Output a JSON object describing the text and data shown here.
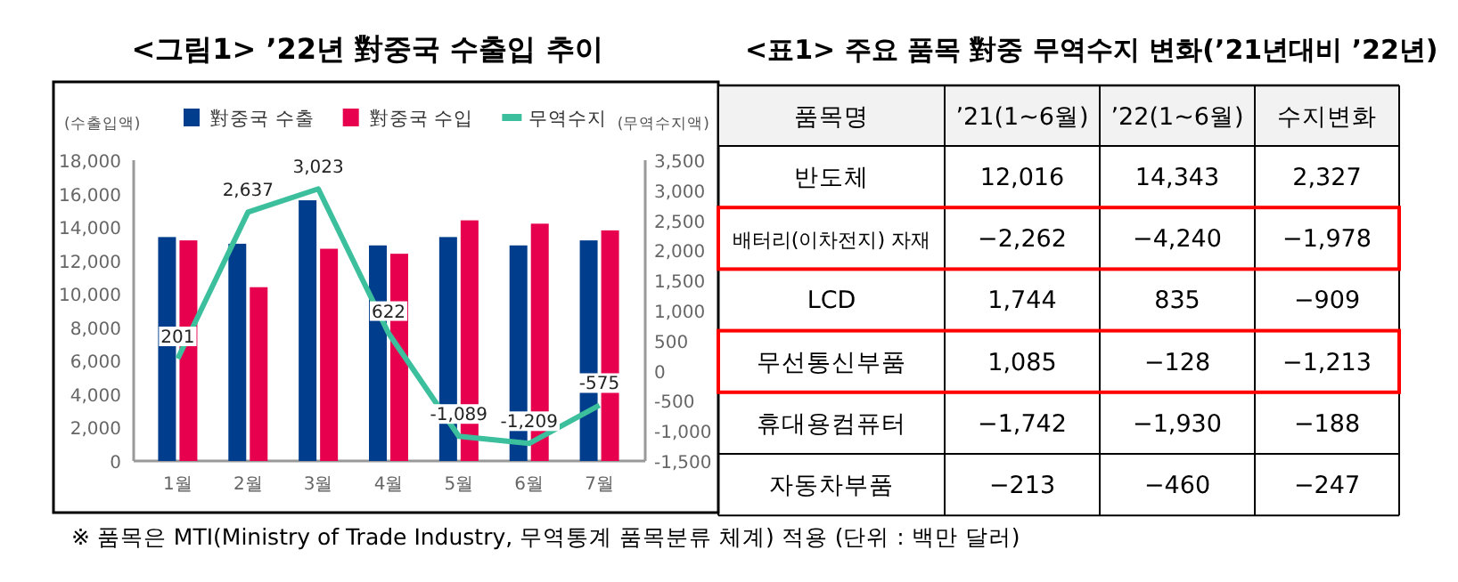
{
  "chart_data": [
    {
      "type": "bar",
      "title": "<그림1> ’22년 對중국 수출입 추이",
      "ylabel": "(수출입액)",
      "y2label": "(무역수지액)",
      "categories": [
        "1월",
        "2월",
        "3월",
        "4월",
        "5월",
        "6월",
        "7월"
      ],
      "series": [
        {
          "name": "對중국 수출",
          "color": "#003d8c",
          "values": [
            13400,
            13000,
            15600,
            12900,
            13400,
            12900,
            13200
          ]
        },
        {
          "name": "對중국 수입",
          "color": "#e6004d",
          "values": [
            13200,
            10400,
            12700,
            12400,
            14400,
            14200,
            13800
          ]
        },
        {
          "name": "무역수지",
          "type": "line",
          "axis": "y2",
          "color": "#3cbf9c",
          "values": [
            201,
            2637,
            3023,
            622,
            -1089,
            -1209,
            -575
          ],
          "value_labels": [
            "201",
            "2,637",
            "3,023",
            "622",
            "-1,089",
            "-1,209",
            "-575"
          ]
        }
      ],
      "ylim": [
        0,
        18000
      ],
      "yticks": [
        0,
        {
          "value": 2000,
          "label": "2,000"
        },
        {
          "value": 4000,
          "label": "4,000"
        },
        {
          "value": 6000,
          "label": "6,000"
        },
        {
          "value": 8000,
          "label": "8,000"
        },
        {
          "value": 10000,
          "label": "10,000"
        },
        {
          "value": 12000,
          "label": "12,000"
        },
        {
          "value": 14000,
          "label": "14,000"
        },
        {
          "value": 16000,
          "label": "16,000"
        },
        {
          "value": 18000,
          "label": "18,000"
        }
      ],
      "y2lim": [
        -1500,
        3500
      ],
      "y2ticks": [
        {
          "value": -1500,
          "label": "-1,500"
        },
        {
          "value": -1000,
          "label": "-1,000"
        },
        -500,
        0,
        500,
        {
          "value": 1000,
          "label": "1,000"
        },
        {
          "value": 1500,
          "label": "1,500"
        },
        {
          "value": 2000,
          "label": "2,000"
        },
        {
          "value": 2500,
          "label": "2,500"
        },
        {
          "value": 3000,
          "label": "3,000"
        },
        {
          "value": 3500,
          "label": "3,500"
        }
      ],
      "legend": "top",
      "annotations": [
        "※ 품목은 MTI(Ministry of Trade Industry, 무역통계 품목분류 체계) 적용 (단위 : 백만 달러)"
      ]
    },
    {
      "type": "other",
      "title": "<표1> 주요 품목 對중 무역수지 변화(’21년대비 ’22년)",
      "ylabel": "품목명",
      "categories": [
        "반도체",
        "배터리(이차전지) 자재",
        "LCD",
        "무선통신부품",
        "휴대용컴퓨터",
        "자동차부품"
      ],
      "series": [
        {
          "name": "’21(1~6월)",
          "values": [
            12016,
            -2262,
            1744,
            1085,
            -1742,
            -213
          ],
          "value_labels": [
            "12,016",
            "−2,262",
            "1,744",
            "1,085",
            "−1,742",
            "−213"
          ]
        },
        {
          "name": "’22(1~6월)",
          "values": [
            14343,
            -4240,
            835,
            -128,
            -1930,
            -460
          ],
          "value_labels": [
            "14,343",
            "−4,240",
            "835",
            "−128",
            "−1,930",
            "−460"
          ]
        },
        {
          "name": "수지변화",
          "values": [
            2327,
            -1978,
            -909,
            -1213,
            -188,
            -247
          ],
          "value_labels": [
            "2,327",
            "−1,978",
            "−909",
            "−1,213",
            "−188",
            "−247"
          ]
        }
      ]
    }
  ]
}
